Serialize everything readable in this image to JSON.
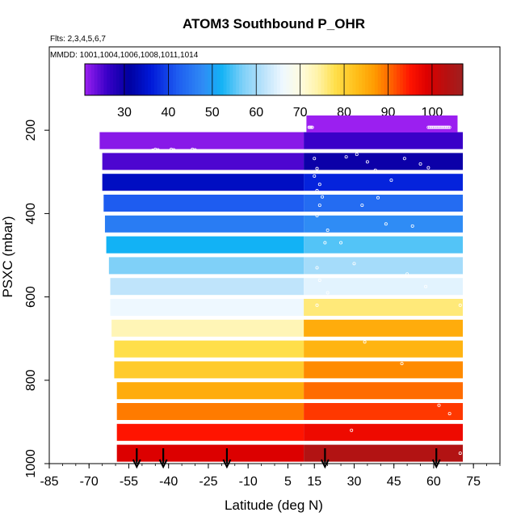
{
  "chart_data": {
    "type": "heatmap",
    "title": "ATOM3 Southbound P_OHR",
    "flights_label": "Flts: 2,3,4,5,6,7",
    "dates_label": "MMDD: 1001,1004,1006,1008,1011,1014",
    "xlabel": "Latitude (deg N)",
    "ylabel": "PSXC (mbar)",
    "xlim": [
      -85,
      85
    ],
    "ylim": [
      1000,
      0
    ],
    "x_ticks": [
      "-85",
      "-70",
      "-55",
      "-40",
      "-25",
      "-10",
      "5",
      "15",
      "30",
      "45",
      "60",
      "75"
    ],
    "x_tick_values": [
      -85,
      -70,
      -55,
      -40,
      -25,
      -10,
      5,
      15,
      30,
      45,
      60,
      75
    ],
    "y_ticks": [
      "200",
      "400",
      "600",
      "800",
      "1000"
    ],
    "y_tick_values": [
      200,
      400,
      600,
      800,
      1000
    ],
    "colorbar": {
      "ticks": [
        "30",
        "40",
        "50",
        "60",
        "70",
        "80",
        "90",
        "100"
      ],
      "tick_values": [
        30,
        40,
        50,
        60,
        70,
        80,
        90,
        100
      ],
      "range": [
        21,
        107
      ]
    },
    "arrows_latitude": [
      -52,
      -42,
      -18,
      19,
      61
    ],
    "pressure_levels": [
      225,
      275,
      325,
      375,
      425,
      475,
      525,
      575,
      625,
      675,
      725,
      775,
      825,
      875,
      925,
      975
    ],
    "south_band": {
      "lat_range": [
        -65,
        11
      ],
      "values": [
        22,
        25,
        34,
        42,
        46,
        52,
        57,
        62,
        66,
        73,
        78,
        81,
        85,
        89,
        95,
        99
      ]
    },
    "north_band": {
      "lat_range": [
        11,
        71
      ],
      "top_level": {
        "pressure": 185,
        "value": 21
      },
      "values": [
        26,
        30,
        37,
        44,
        48,
        55,
        60,
        65,
        76,
        85,
        84,
        88,
        90,
        93,
        97,
        104
      ]
    }
  }
}
